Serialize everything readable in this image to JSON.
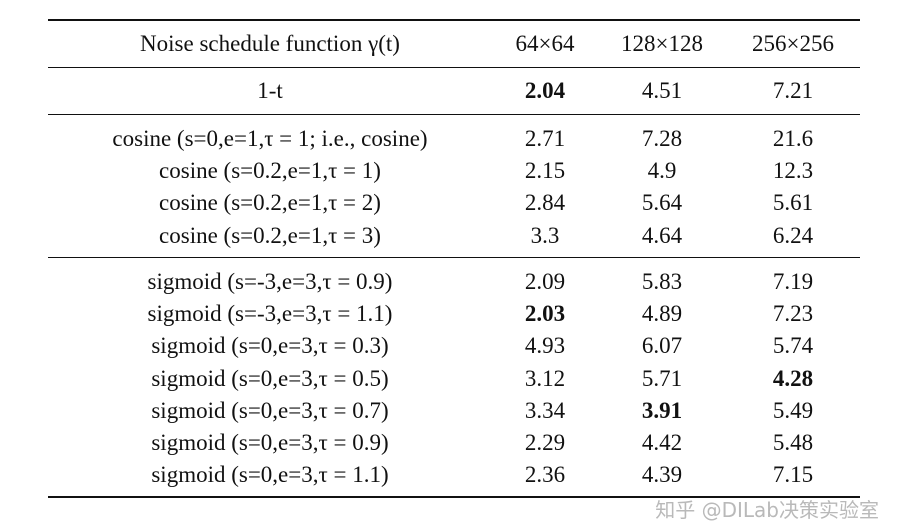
{
  "header": [
    "Noise schedule function γ(t)",
    "64×64",
    "128×128",
    "256×256"
  ],
  "groups": [
    {
      "rows": [
        {
          "cells": [
            "1-t",
            "2.04",
            "4.51",
            "7.21"
          ],
          "bold": [
            false,
            true,
            false,
            false
          ]
        }
      ]
    },
    {
      "rows": [
        {
          "cells": [
            "cosine (s=0,e=1,τ = 1; i.e., cosine)",
            "2.71",
            "7.28",
            "21.6"
          ],
          "bold": [
            false,
            false,
            false,
            false
          ]
        },
        {
          "cells": [
            "cosine (s=0.2,e=1,τ = 1)",
            "2.15",
            "4.9",
            "12.3"
          ],
          "bold": [
            false,
            false,
            false,
            false
          ]
        },
        {
          "cells": [
            "cosine (s=0.2,e=1,τ = 2)",
            "2.84",
            "5.64",
            "5.61"
          ],
          "bold": [
            false,
            false,
            false,
            false
          ]
        },
        {
          "cells": [
            "cosine (s=0.2,e=1,τ = 3)",
            "3.3",
            "4.64",
            "6.24"
          ],
          "bold": [
            false,
            false,
            false,
            false
          ]
        }
      ]
    },
    {
      "rows": [
        {
          "cells": [
            "sigmoid (s=-3,e=3,τ = 0.9)",
            "2.09",
            "5.83",
            "7.19"
          ],
          "bold": [
            false,
            false,
            false,
            false
          ]
        },
        {
          "cells": [
            "sigmoid (s=-3,e=3,τ = 1.1)",
            "2.03",
            "4.89",
            "7.23"
          ],
          "bold": [
            false,
            true,
            false,
            false
          ]
        },
        {
          "cells": [
            "sigmoid (s=0,e=3,τ = 0.3)",
            "4.93",
            "6.07",
            "5.74"
          ],
          "bold": [
            false,
            false,
            false,
            false
          ]
        },
        {
          "cells": [
            "sigmoid (s=0,e=3,τ = 0.5)",
            "3.12",
            "5.71",
            "4.28"
          ],
          "bold": [
            false,
            false,
            false,
            true
          ]
        },
        {
          "cells": [
            "sigmoid (s=0,e=3,τ = 0.7)",
            "3.34",
            "3.91",
            "5.49"
          ],
          "bold": [
            false,
            false,
            true,
            false
          ]
        },
        {
          "cells": [
            "sigmoid (s=0,e=3,τ = 0.9)",
            "2.29",
            "4.42",
            "5.48"
          ],
          "bold": [
            false,
            false,
            false,
            false
          ]
        },
        {
          "cells": [
            "sigmoid (s=0,e=3,τ = 1.1)",
            "2.36",
            "4.39",
            "7.15"
          ],
          "bold": [
            false,
            false,
            false,
            false
          ]
        }
      ]
    }
  ],
  "watermark": "知乎 @DILab决策实验室"
}
